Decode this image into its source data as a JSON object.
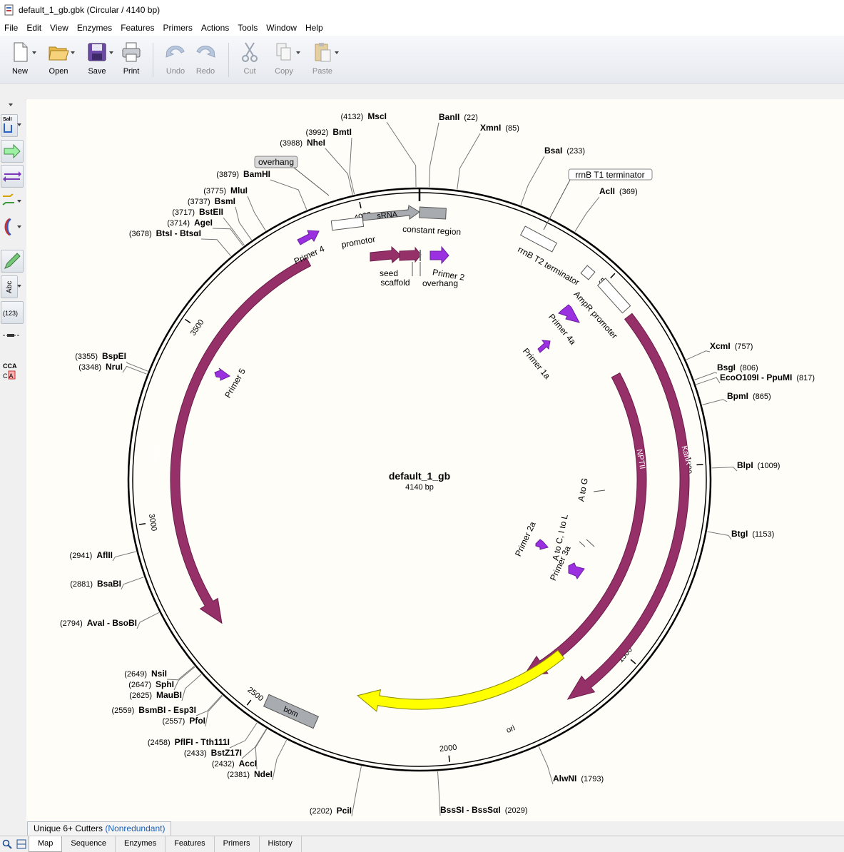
{
  "window": {
    "filename": "default_1_gb.gbk",
    "info": "(Circular / 4140 bp)"
  },
  "menu": [
    "File",
    "Edit",
    "View",
    "Enzymes",
    "Features",
    "Primers",
    "Actions",
    "Tools",
    "Window",
    "Help"
  ],
  "toolbar": {
    "new": "New",
    "open": "Open",
    "save": "Save",
    "print": "Print",
    "undo": "Undo",
    "redo": "Redo",
    "cut": "Cut",
    "copy": "Copy",
    "paste": "Paste"
  },
  "sidebar": {
    "abc": "Abc",
    "num": "(123)",
    "cca": "CCA",
    "cca2": "C  A",
    "sall": "SalI"
  },
  "map": {
    "name": "default_1_gb",
    "length": "4140 bp",
    "ticks": [
      "500",
      "1000",
      "1500",
      "2000",
      "2500",
      "3000",
      "3500",
      "4000"
    ],
    "sites": [
      {
        "pos": "(4132)",
        "name": "MscI",
        "side": "l"
      },
      {
        "pos": "(22)",
        "name": "BanII",
        "side": "r"
      },
      {
        "pos": "(85)",
        "name": "XmnI",
        "side": "r"
      },
      {
        "pos": "(233)",
        "name": "BsaI",
        "side": "r"
      },
      {
        "pos": "(369)",
        "name": "AclI",
        "side": "r"
      },
      {
        "pos": "(757)",
        "name": "XcmI",
        "side": "r"
      },
      {
        "pos": "(806)",
        "name": "BsgI",
        "side": "r"
      },
      {
        "pos": "(817)",
        "name": "EcoO109I - PpuMI",
        "side": "r"
      },
      {
        "pos": "(865)",
        "name": "BpmI",
        "side": "r"
      },
      {
        "pos": "(1009)",
        "name": "BlpI",
        "side": "r"
      },
      {
        "pos": "(1153)",
        "name": "BtgI",
        "side": "r"
      },
      {
        "pos": "(1793)",
        "name": "AlwNI",
        "side": "r"
      },
      {
        "pos": "(2029)",
        "name": "BssSI - BssSαI",
        "side": "r"
      },
      {
        "pos": "(2202)",
        "name": "PciI",
        "side": "l"
      },
      {
        "pos": "(2381)",
        "name": "NdeI",
        "side": "l"
      },
      {
        "pos": "(2432)",
        "name": "AccI",
        "side": "l"
      },
      {
        "pos": "(2433)",
        "name": "BstZ17I",
        "side": "l"
      },
      {
        "pos": "(2458)",
        "name": "PflFI - Tth111I",
        "side": "l"
      },
      {
        "pos": "(2557)",
        "name": "PfoI",
        "side": "l"
      },
      {
        "pos": "(2559)",
        "name": "BsmBI - Esp3I",
        "side": "l"
      },
      {
        "pos": "(2625)",
        "name": "MauBI",
        "side": "l"
      },
      {
        "pos": "(2647)",
        "name": "SphI",
        "side": "l"
      },
      {
        "pos": "(2649)",
        "name": "NsiI",
        "side": "l"
      },
      {
        "pos": "(2794)",
        "name": "AvaI - BsoBI",
        "side": "l"
      },
      {
        "pos": "(2881)",
        "name": "BsaBI",
        "side": "l"
      },
      {
        "pos": "(2941)",
        "name": "AflII",
        "side": "l"
      },
      {
        "pos": "(3348)",
        "name": "NruI",
        "side": "l"
      },
      {
        "pos": "(3355)",
        "name": "BspEI",
        "side": "l"
      },
      {
        "pos": "(3678)",
        "name": "BtsI - BtsαI",
        "side": "l"
      },
      {
        "pos": "(3714)",
        "name": "AgeI",
        "side": "l"
      },
      {
        "pos": "(3717)",
        "name": "BstEII",
        "side": "l"
      },
      {
        "pos": "(3737)",
        "name": "BsmI",
        "side": "l"
      },
      {
        "pos": "(3775)",
        "name": "MluI",
        "side": "l"
      },
      {
        "pos": "(3879)",
        "name": "BamHI",
        "side": "l"
      },
      {
        "pos": "(3988)",
        "name": "NheI",
        "side": "l"
      },
      {
        "pos": "(3992)",
        "name": "BmtI",
        "side": "l"
      }
    ],
    "features": {
      "kanr": "KanR",
      "nptii": "NPTII",
      "arac": "araC",
      "ori": "ori",
      "bom": "bom",
      "srna": "sRNA",
      "promotor": "promotor",
      "constant": "constant region",
      "overhang_box": "overhang",
      "rrnb_t1": "rrnB T1 terminator",
      "rrnb_t2": "rrnB T2 terminator",
      "ampr_promoter": "AmpR promoter",
      "seed": "seed",
      "scaffold": "scaffold",
      "overhang": "overhang",
      "primer2": "Primer 2",
      "primer4": "Primer 4",
      "primer4a": "Primer 4a",
      "primer1a": "Primer 1a",
      "primer5": "Primer 5",
      "primer2a": "Primer 2a",
      "primer3a": "Primer 3a",
      "mut1": "A to G",
      "mut2": "A to C, I to L"
    },
    "colors": {
      "maroon": "#953069",
      "primer": "#9b30e0",
      "ori": "#ffff00",
      "gray": "#a8abb0"
    }
  },
  "bottom": {
    "cutters": "Unique 6+ Cutters",
    "nonredundant": "(Nonredundant)",
    "tabs": [
      "Map",
      "Sequence",
      "Enzymes",
      "Features",
      "Primers",
      "History"
    ]
  }
}
